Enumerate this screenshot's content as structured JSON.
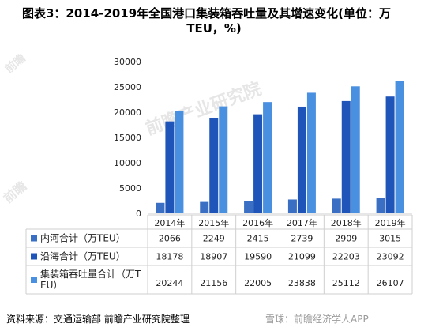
{
  "title_line1": "图表3：2014-2019年全国港口集装箱吞吐量及其增速变化(单位：万",
  "title_line2": "TEU，%)",
  "source": "资料来源：交通运输部 前瞻产业研究院整理",
  "watermark_footer": "雪球：前瞻经济学人APP",
  "chart_data": {
    "type": "bar",
    "categories": [
      "2014年",
      "2015年",
      "2016年",
      "2017年",
      "2018年",
      "2019年"
    ],
    "series": [
      {
        "name": "内河合计（万TEU）",
        "values": [
          2066,
          2249,
          2415,
          2739,
          2909,
          3015
        ],
        "color": "#3a6fc4"
      },
      {
        "name": "沿海合计（万TEU）",
        "values": [
          18178,
          18907,
          19590,
          21099,
          22203,
          23092
        ],
        "color": "#1f55b8"
      },
      {
        "name": "集装箱吞吐量合计（万TEU）",
        "values": [
          20244,
          21156,
          22005,
          23838,
          25112,
          26107
        ],
        "color": "#4a90e0"
      }
    ],
    "yticks": [
      "0",
      "5000",
      "10000",
      "15000",
      "20000",
      "25000",
      "30000"
    ],
    "ylim": [
      0,
      30000
    ],
    "legend": "table-below"
  }
}
